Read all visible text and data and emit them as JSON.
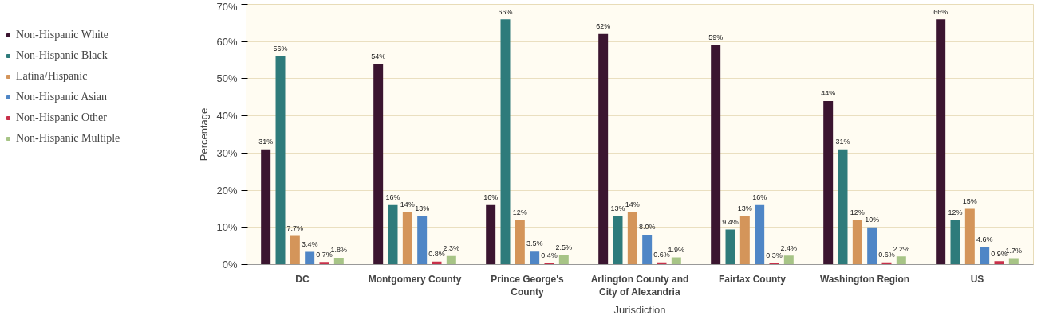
{
  "chart_data": {
    "type": "bar",
    "xlabel": "Jurisdiction",
    "ylabel": "Percentage",
    "categories": [
      "DC",
      "Montgomery County",
      "Prince George's County",
      "Arlington County and City of Alexandria",
      "Fairfax County",
      "Washington Region",
      "US"
    ],
    "ylim": [
      0,
      70
    ],
    "yticks": [
      {
        "value": 0,
        "label": "0%"
      },
      {
        "value": 10,
        "label": "10%"
      },
      {
        "value": 20,
        "label": "20%"
      },
      {
        "value": 30,
        "label": "30%"
      },
      {
        "value": 40,
        "label": "40%"
      },
      {
        "value": 50,
        "label": "50%"
      },
      {
        "value": 60,
        "label": "60%"
      },
      {
        "value": 70,
        "label": "70%"
      }
    ],
    "grid": "y",
    "legend": "left",
    "series": [
      {
        "name": "Non-Hispanic White",
        "color": "#3b1530",
        "values": [
          31,
          54,
          16,
          62,
          59,
          44,
          66
        ],
        "value_labels": [
          "31%",
          "54%",
          "16%",
          "62%",
          "59%",
          "44%",
          "66%"
        ]
      },
      {
        "name": "Non-Hispanic Black",
        "color": "#2e7b7b",
        "values": [
          56,
          16,
          66,
          13,
          9.4,
          31,
          12
        ],
        "value_labels": [
          "56%",
          "16%",
          "66%",
          "13%",
          "9.4%",
          "31%",
          "12%"
        ]
      },
      {
        "name": "Latina/Hispanic",
        "color": "#d4955a",
        "values": [
          7.7,
          14,
          12,
          14,
          13,
          12,
          15
        ],
        "value_labels": [
          "7.7%",
          "14%",
          "12%",
          "14%",
          "13%",
          "12%",
          "15%"
        ]
      },
      {
        "name": "Non-Hispanic Asian",
        "color": "#4f86c6",
        "values": [
          3.4,
          13,
          3.5,
          8.0,
          16,
          10,
          4.6
        ],
        "value_labels": [
          "3.4%",
          "13%",
          "3.5%",
          "8.0%",
          "16%",
          "10%",
          "4.6%"
        ]
      },
      {
        "name": "Non-Hispanic Other",
        "color": "#c8304a",
        "values": [
          0.7,
          0.8,
          0.4,
          0.6,
          0.3,
          0.6,
          0.9
        ],
        "value_labels": [
          "0.7%",
          "0.8%",
          "0.4%",
          "0.6%",
          "0.3%",
          "0.6%",
          "0.9%"
        ]
      },
      {
        "name": "Non-Hispanic Multiple",
        "color": "#a7c486",
        "values": [
          1.8,
          2.3,
          2.5,
          1.9,
          2.4,
          2.2,
          1.7
        ],
        "value_labels": [
          "1.8%",
          "2.3%",
          "2.5%",
          "1.9%",
          "2.4%",
          "2.2%",
          "1.7%"
        ]
      }
    ]
  }
}
